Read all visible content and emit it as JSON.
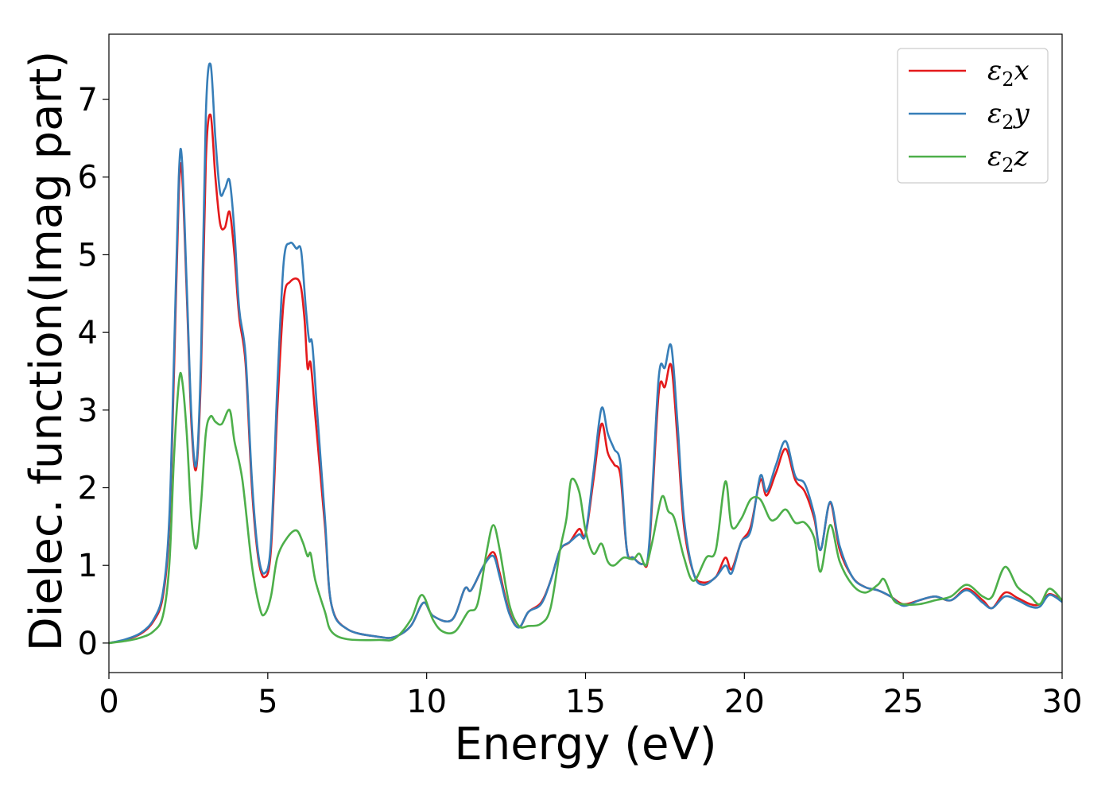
{
  "chart_data": {
    "type": "line",
    "xlabel": "Energy (eV)",
    "ylabel": "Dielec. function(Imag part)",
    "xlim": [
      0,
      30
    ],
    "ylim": [
      -0.38,
      7.84
    ],
    "xticks": [
      0,
      5,
      10,
      15,
      20,
      25,
      30
    ],
    "yticks": [
      0,
      1,
      2,
      3,
      4,
      5,
      6,
      7
    ],
    "grid": false,
    "legend_position": "top-right",
    "series": [
      {
        "name": "ε2x",
        "symbol": "ε",
        "sub": "2",
        "comp": "x",
        "color": "#e41a1c",
        "points": [
          [
            0,
            0
          ],
          [
            0.5,
            0.04
          ],
          [
            1,
            0.12
          ],
          [
            1.4,
            0.28
          ],
          [
            1.7,
            0.6
          ],
          [
            1.9,
            1.5
          ],
          [
            2.05,
            3.5
          ],
          [
            2.2,
            5.8
          ],
          [
            2.3,
            6.05
          ],
          [
            2.45,
            4.5
          ],
          [
            2.6,
            2.8
          ],
          [
            2.75,
            2.25
          ],
          [
            2.9,
            3.5
          ],
          [
            3.05,
            6.2
          ],
          [
            3.2,
            6.8
          ],
          [
            3.35,
            6.0
          ],
          [
            3.5,
            5.4
          ],
          [
            3.65,
            5.35
          ],
          [
            3.8,
            5.55
          ],
          [
            3.95,
            5.0
          ],
          [
            4.1,
            4.2
          ],
          [
            4.3,
            3.6
          ],
          [
            4.5,
            2.0
          ],
          [
            4.7,
            1.1
          ],
          [
            4.9,
            0.85
          ],
          [
            5.1,
            1.2
          ],
          [
            5.3,
            3.0
          ],
          [
            5.5,
            4.4
          ],
          [
            5.7,
            4.65
          ],
          [
            6.0,
            4.65
          ],
          [
            6.15,
            4.2
          ],
          [
            6.25,
            3.55
          ],
          [
            6.35,
            3.6
          ],
          [
            6.5,
            2.9
          ],
          [
            6.8,
            1.5
          ],
          [
            7.0,
            0.5
          ],
          [
            7.5,
            0.18
          ],
          [
            8.5,
            0.08
          ],
          [
            9.0,
            0.08
          ],
          [
            9.5,
            0.22
          ],
          [
            9.9,
            0.52
          ],
          [
            10.2,
            0.35
          ],
          [
            10.8,
            0.3
          ],
          [
            11.2,
            0.7
          ],
          [
            11.4,
            0.68
          ],
          [
            11.8,
            1.0
          ],
          [
            12.1,
            1.17
          ],
          [
            12.3,
            0.9
          ],
          [
            12.6,
            0.4
          ],
          [
            12.9,
            0.2
          ],
          [
            13.2,
            0.4
          ],
          [
            13.6,
            0.52
          ],
          [
            13.9,
            0.8
          ],
          [
            14.2,
            1.2
          ],
          [
            14.5,
            1.3
          ],
          [
            14.8,
            1.47
          ],
          [
            15.0,
            1.4
          ],
          [
            15.25,
            2.1
          ],
          [
            15.5,
            2.82
          ],
          [
            15.7,
            2.45
          ],
          [
            15.9,
            2.3
          ],
          [
            16.1,
            2.15
          ],
          [
            16.3,
            1.2
          ],
          [
            16.5,
            1.1
          ],
          [
            16.8,
            1.02
          ],
          [
            17.0,
            1.2
          ],
          [
            17.3,
            3.2
          ],
          [
            17.5,
            3.3
          ],
          [
            17.7,
            3.57
          ],
          [
            17.9,
            2.6
          ],
          [
            18.1,
            1.5
          ],
          [
            18.4,
            0.9
          ],
          [
            18.7,
            0.78
          ],
          [
            19.1,
            0.85
          ],
          [
            19.4,
            1.1
          ],
          [
            19.6,
            0.95
          ],
          [
            19.9,
            1.3
          ],
          [
            20.2,
            1.5
          ],
          [
            20.5,
            2.1
          ],
          [
            20.7,
            1.9
          ],
          [
            21.0,
            2.2
          ],
          [
            21.3,
            2.5
          ],
          [
            21.6,
            2.1
          ],
          [
            21.9,
            1.95
          ],
          [
            22.2,
            1.6
          ],
          [
            22.4,
            1.2
          ],
          [
            22.7,
            1.8
          ],
          [
            23.0,
            1.2
          ],
          [
            23.4,
            0.85
          ],
          [
            23.8,
            0.72
          ],
          [
            24.2,
            0.68
          ],
          [
            24.6,
            0.6
          ],
          [
            25.0,
            0.5
          ],
          [
            25.5,
            0.55
          ],
          [
            26.0,
            0.6
          ],
          [
            26.5,
            0.55
          ],
          [
            27.0,
            0.7
          ],
          [
            27.5,
            0.55
          ],
          [
            27.8,
            0.45
          ],
          [
            28.2,
            0.65
          ],
          [
            28.6,
            0.58
          ],
          [
            29.0,
            0.5
          ],
          [
            29.3,
            0.5
          ],
          [
            29.6,
            0.63
          ],
          [
            30,
            0.55
          ]
        ]
      },
      {
        "name": "ε2y",
        "symbol": "ε",
        "sub": "2",
        "comp": "y",
        "color": "#377eb8",
        "points": [
          [
            0,
            0
          ],
          [
            0.5,
            0.045
          ],
          [
            1,
            0.13
          ],
          [
            1.4,
            0.3
          ],
          [
            1.7,
            0.65
          ],
          [
            1.9,
            1.6
          ],
          [
            2.05,
            3.7
          ],
          [
            2.2,
            6.0
          ],
          [
            2.3,
            6.22
          ],
          [
            2.45,
            4.6
          ],
          [
            2.6,
            2.9
          ],
          [
            2.75,
            2.3
          ],
          [
            2.9,
            3.7
          ],
          [
            3.05,
            6.8
          ],
          [
            3.2,
            7.45
          ],
          [
            3.35,
            6.5
          ],
          [
            3.5,
            5.8
          ],
          [
            3.65,
            5.85
          ],
          [
            3.8,
            5.95
          ],
          [
            3.95,
            5.3
          ],
          [
            4.1,
            4.3
          ],
          [
            4.3,
            3.7
          ],
          [
            4.5,
            2.1
          ],
          [
            4.7,
            1.15
          ],
          [
            4.9,
            0.9
          ],
          [
            5.1,
            1.3
          ],
          [
            5.3,
            3.3
          ],
          [
            5.5,
            4.9
          ],
          [
            5.7,
            5.15
          ],
          [
            5.9,
            5.08
          ],
          [
            6.05,
            5.05
          ],
          [
            6.2,
            4.3
          ],
          [
            6.3,
            3.9
          ],
          [
            6.4,
            3.85
          ],
          [
            6.55,
            3.0
          ],
          [
            6.8,
            1.6
          ],
          [
            7.0,
            0.5
          ],
          [
            7.5,
            0.18
          ],
          [
            8.5,
            0.08
          ],
          [
            9.0,
            0.08
          ],
          [
            9.5,
            0.22
          ],
          [
            9.9,
            0.52
          ],
          [
            10.2,
            0.35
          ],
          [
            10.8,
            0.3
          ],
          [
            11.2,
            0.7
          ],
          [
            11.4,
            0.68
          ],
          [
            11.8,
            1.0
          ],
          [
            12.1,
            1.12
          ],
          [
            12.3,
            0.85
          ],
          [
            12.6,
            0.38
          ],
          [
            12.9,
            0.2
          ],
          [
            13.2,
            0.4
          ],
          [
            13.6,
            0.5
          ],
          [
            13.9,
            0.8
          ],
          [
            14.2,
            1.2
          ],
          [
            14.5,
            1.3
          ],
          [
            14.8,
            1.4
          ],
          [
            15.0,
            1.4
          ],
          [
            15.25,
            2.2
          ],
          [
            15.5,
            3.02
          ],
          [
            15.7,
            2.7
          ],
          [
            15.9,
            2.5
          ],
          [
            16.1,
            2.3
          ],
          [
            16.3,
            1.2
          ],
          [
            16.5,
            1.1
          ],
          [
            16.8,
            1.02
          ],
          [
            17.0,
            1.25
          ],
          [
            17.3,
            3.4
          ],
          [
            17.5,
            3.55
          ],
          [
            17.7,
            3.82
          ],
          [
            17.9,
            2.8
          ],
          [
            18.1,
            1.6
          ],
          [
            18.4,
            0.9
          ],
          [
            18.7,
            0.75
          ],
          [
            19.1,
            0.85
          ],
          [
            19.4,
            1.0
          ],
          [
            19.6,
            0.9
          ],
          [
            19.9,
            1.3
          ],
          [
            20.2,
            1.45
          ],
          [
            20.5,
            2.15
          ],
          [
            20.7,
            1.95
          ],
          [
            21.0,
            2.3
          ],
          [
            21.3,
            2.6
          ],
          [
            21.6,
            2.15
          ],
          [
            21.9,
            2.05
          ],
          [
            22.2,
            1.65
          ],
          [
            22.4,
            1.2
          ],
          [
            22.7,
            1.82
          ],
          [
            23.0,
            1.25
          ],
          [
            23.4,
            0.85
          ],
          [
            23.8,
            0.72
          ],
          [
            24.2,
            0.68
          ],
          [
            24.6,
            0.6
          ],
          [
            25.0,
            0.48
          ],
          [
            25.5,
            0.55
          ],
          [
            26.0,
            0.6
          ],
          [
            26.5,
            0.55
          ],
          [
            27.0,
            0.68
          ],
          [
            27.5,
            0.52
          ],
          [
            27.8,
            0.45
          ],
          [
            28.2,
            0.6
          ],
          [
            28.6,
            0.55
          ],
          [
            29.0,
            0.47
          ],
          [
            29.3,
            0.47
          ],
          [
            29.6,
            0.62
          ],
          [
            30,
            0.53
          ]
        ]
      },
      {
        "name": "ε2z",
        "symbol": "ε",
        "sub": "2",
        "comp": "z",
        "color": "#4daf4a",
        "points": [
          [
            0,
            0
          ],
          [
            0.5,
            0.025
          ],
          [
            1,
            0.07
          ],
          [
            1.4,
            0.15
          ],
          [
            1.7,
            0.35
          ],
          [
            1.9,
            1.0
          ],
          [
            2.05,
            2.4
          ],
          [
            2.2,
            3.35
          ],
          [
            2.3,
            3.4
          ],
          [
            2.45,
            2.7
          ],
          [
            2.6,
            1.6
          ],
          [
            2.75,
            1.22
          ],
          [
            2.9,
            1.8
          ],
          [
            3.05,
            2.7
          ],
          [
            3.2,
            2.92
          ],
          [
            3.35,
            2.85
          ],
          [
            3.55,
            2.82
          ],
          [
            3.8,
            3.0
          ],
          [
            3.95,
            2.6
          ],
          [
            4.2,
            2.1
          ],
          [
            4.5,
            1.0
          ],
          [
            4.75,
            0.45
          ],
          [
            4.9,
            0.37
          ],
          [
            5.1,
            0.6
          ],
          [
            5.3,
            1.1
          ],
          [
            5.6,
            1.35
          ],
          [
            5.9,
            1.45
          ],
          [
            6.1,
            1.3
          ],
          [
            6.25,
            1.12
          ],
          [
            6.35,
            1.15
          ],
          [
            6.5,
            0.8
          ],
          [
            6.8,
            0.4
          ],
          [
            7.0,
            0.15
          ],
          [
            7.5,
            0.05
          ],
          [
            8.5,
            0.04
          ],
          [
            9.0,
            0.06
          ],
          [
            9.5,
            0.3
          ],
          [
            9.85,
            0.62
          ],
          [
            10.2,
            0.3
          ],
          [
            10.5,
            0.15
          ],
          [
            10.9,
            0.15
          ],
          [
            11.3,
            0.4
          ],
          [
            11.6,
            0.5
          ],
          [
            11.9,
            1.2
          ],
          [
            12.1,
            1.52
          ],
          [
            12.3,
            1.2
          ],
          [
            12.6,
            0.5
          ],
          [
            12.9,
            0.22
          ],
          [
            13.2,
            0.22
          ],
          [
            13.6,
            0.25
          ],
          [
            13.9,
            0.45
          ],
          [
            14.2,
            1.2
          ],
          [
            14.4,
            1.6
          ],
          [
            14.55,
            2.1
          ],
          [
            14.8,
            1.95
          ],
          [
            15.0,
            1.45
          ],
          [
            15.25,
            1.15
          ],
          [
            15.5,
            1.28
          ],
          [
            15.7,
            1.05
          ],
          [
            15.9,
            1.0
          ],
          [
            16.2,
            1.1
          ],
          [
            16.5,
            1.08
          ],
          [
            16.7,
            1.15
          ],
          [
            16.9,
            1.0
          ],
          [
            17.1,
            1.3
          ],
          [
            17.4,
            1.88
          ],
          [
            17.6,
            1.7
          ],
          [
            17.8,
            1.6
          ],
          [
            18.1,
            1.1
          ],
          [
            18.4,
            0.8
          ],
          [
            18.8,
            1.1
          ],
          [
            19.1,
            1.2
          ],
          [
            19.4,
            2.08
          ],
          [
            19.6,
            1.5
          ],
          [
            19.9,
            1.6
          ],
          [
            20.2,
            1.85
          ],
          [
            20.5,
            1.85
          ],
          [
            20.8,
            1.6
          ],
          [
            21.0,
            1.6
          ],
          [
            21.3,
            1.72
          ],
          [
            21.6,
            1.55
          ],
          [
            21.9,
            1.55
          ],
          [
            22.2,
            1.35
          ],
          [
            22.4,
            0.92
          ],
          [
            22.7,
            1.52
          ],
          [
            23.0,
            1.05
          ],
          [
            23.4,
            0.75
          ],
          [
            23.8,
            0.65
          ],
          [
            24.2,
            0.75
          ],
          [
            24.4,
            0.82
          ],
          [
            24.7,
            0.55
          ],
          [
            25.0,
            0.5
          ],
          [
            25.5,
            0.5
          ],
          [
            26.0,
            0.55
          ],
          [
            26.5,
            0.6
          ],
          [
            27.0,
            0.75
          ],
          [
            27.5,
            0.6
          ],
          [
            27.8,
            0.6
          ],
          [
            28.2,
            0.98
          ],
          [
            28.6,
            0.72
          ],
          [
            29.0,
            0.6
          ],
          [
            29.3,
            0.5
          ],
          [
            29.6,
            0.7
          ],
          [
            30,
            0.55
          ]
        ]
      }
    ]
  }
}
